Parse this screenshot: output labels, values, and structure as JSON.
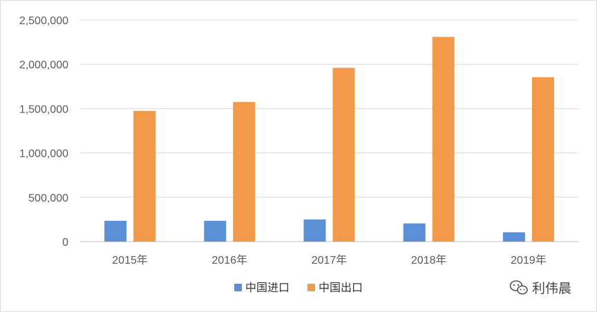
{
  "chart_data": {
    "type": "bar",
    "categories": [
      "2015年",
      "2016年",
      "2017年",
      "2018年",
      "2019年"
    ],
    "series": [
      {
        "name": "中国进口",
        "color": "#5b8fd6",
        "values": [
          235000,
          235000,
          250000,
          205000,
          105000
        ]
      },
      {
        "name": "中国出口",
        "color": "#f29a4a",
        "values": [
          1475000,
          1575000,
          1960000,
          2310000,
          1855000
        ]
      }
    ],
    "y_ticks": [
      "0",
      "500,000",
      "1,000,000",
      "1,500,000",
      "2,000,000",
      "2,500,000"
    ],
    "ylim": [
      0,
      2500000
    ],
    "grid": true,
    "legend_position": "bottom",
    "title": "",
    "xlabel": "",
    "ylabel": ""
  },
  "watermark": {
    "text": "利伟晨",
    "icon": "wechat-icon"
  }
}
